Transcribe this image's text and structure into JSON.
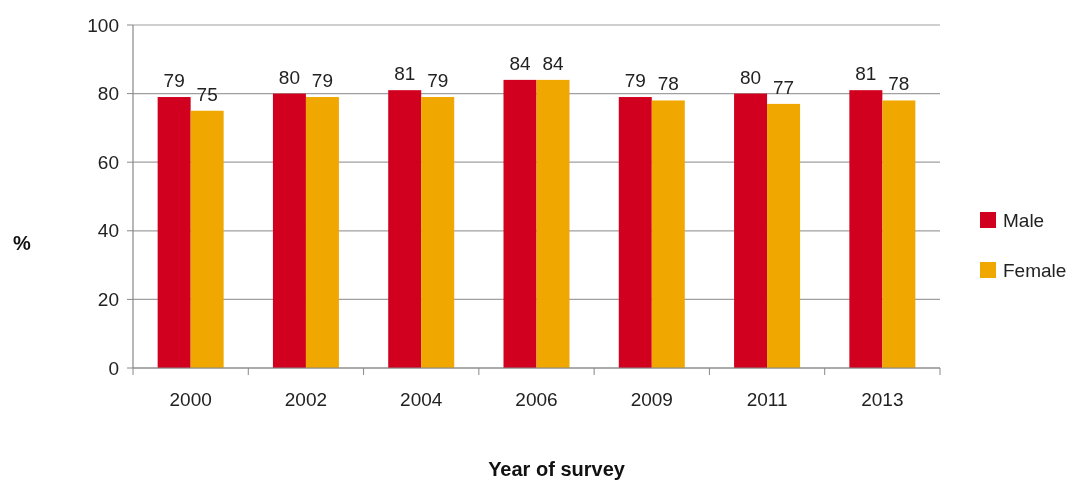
{
  "chart_data": {
    "type": "bar",
    "xlabel": "Year of survey",
    "ylabel": "%",
    "categories": [
      "2000",
      "2002",
      "2004",
      "2006",
      "2009",
      "2011",
      "2013"
    ],
    "series": [
      {
        "name": "Male",
        "color": "#d2001f",
        "values": [
          79,
          80,
          81,
          84,
          79,
          80,
          81
        ]
      },
      {
        "name": "Female",
        "color": "#f0a800",
        "values": [
          75,
          79,
          79,
          84,
          78,
          77,
          78
        ]
      }
    ],
    "ylim": [
      0,
      100
    ],
    "yticks": [
      0,
      20,
      40,
      60,
      80,
      100
    ],
    "grid": "y",
    "legend": "right",
    "data_labels": true
  }
}
